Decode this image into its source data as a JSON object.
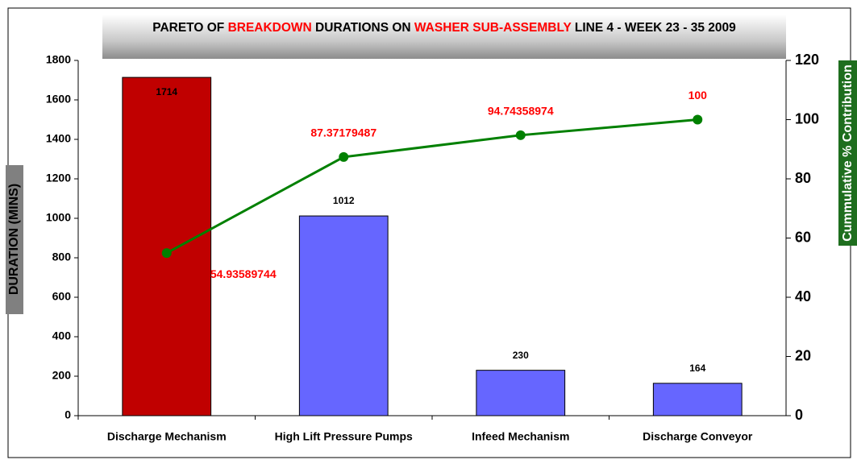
{
  "chart_data": {
    "type": "pareto",
    "title": [
      {
        "text": "PARETO OF ",
        "color": "#000000"
      },
      {
        "text": "BREAKDOWN",
        "color": "#ff0000"
      },
      {
        "text": " DURATIONS ON ",
        "color": "#000000"
      },
      {
        "text": "WASHER SUB-ASSEMBLY",
        "color": "#ff0000"
      },
      {
        "text": " LINE 4 - WEEK 23 - 35 2009",
        "color": "#000000"
      }
    ],
    "ylabel": "DURATION (MINS)",
    "y2label": "Cummulative % Contribution",
    "categories": [
      "Discharge Mechanism",
      "High Lift Pressure Pumps",
      "Infeed Mechanism",
      "Discharge Conveyor"
    ],
    "series": [
      {
        "type": "bar",
        "values": [
          1714,
          1012,
          230,
          164
        ],
        "colors": [
          "#c00000",
          "#6666ff",
          "#6666ff",
          "#6666ff"
        ]
      },
      {
        "type": "line",
        "axis": "y2",
        "color": "#008000",
        "label_color": "#ff0000",
        "values": [
          54.93589744,
          87.37179487,
          94.74358974,
          100
        ]
      }
    ],
    "ylim": [
      0,
      1800
    ],
    "yticks": [
      0,
      200,
      400,
      600,
      800,
      1000,
      1200,
      1400,
      1600,
      1800
    ],
    "y2lim": [
      0,
      120
    ],
    "y2ticks": [
      0,
      20,
      40,
      60,
      80,
      100,
      120
    ],
    "grid": false
  }
}
